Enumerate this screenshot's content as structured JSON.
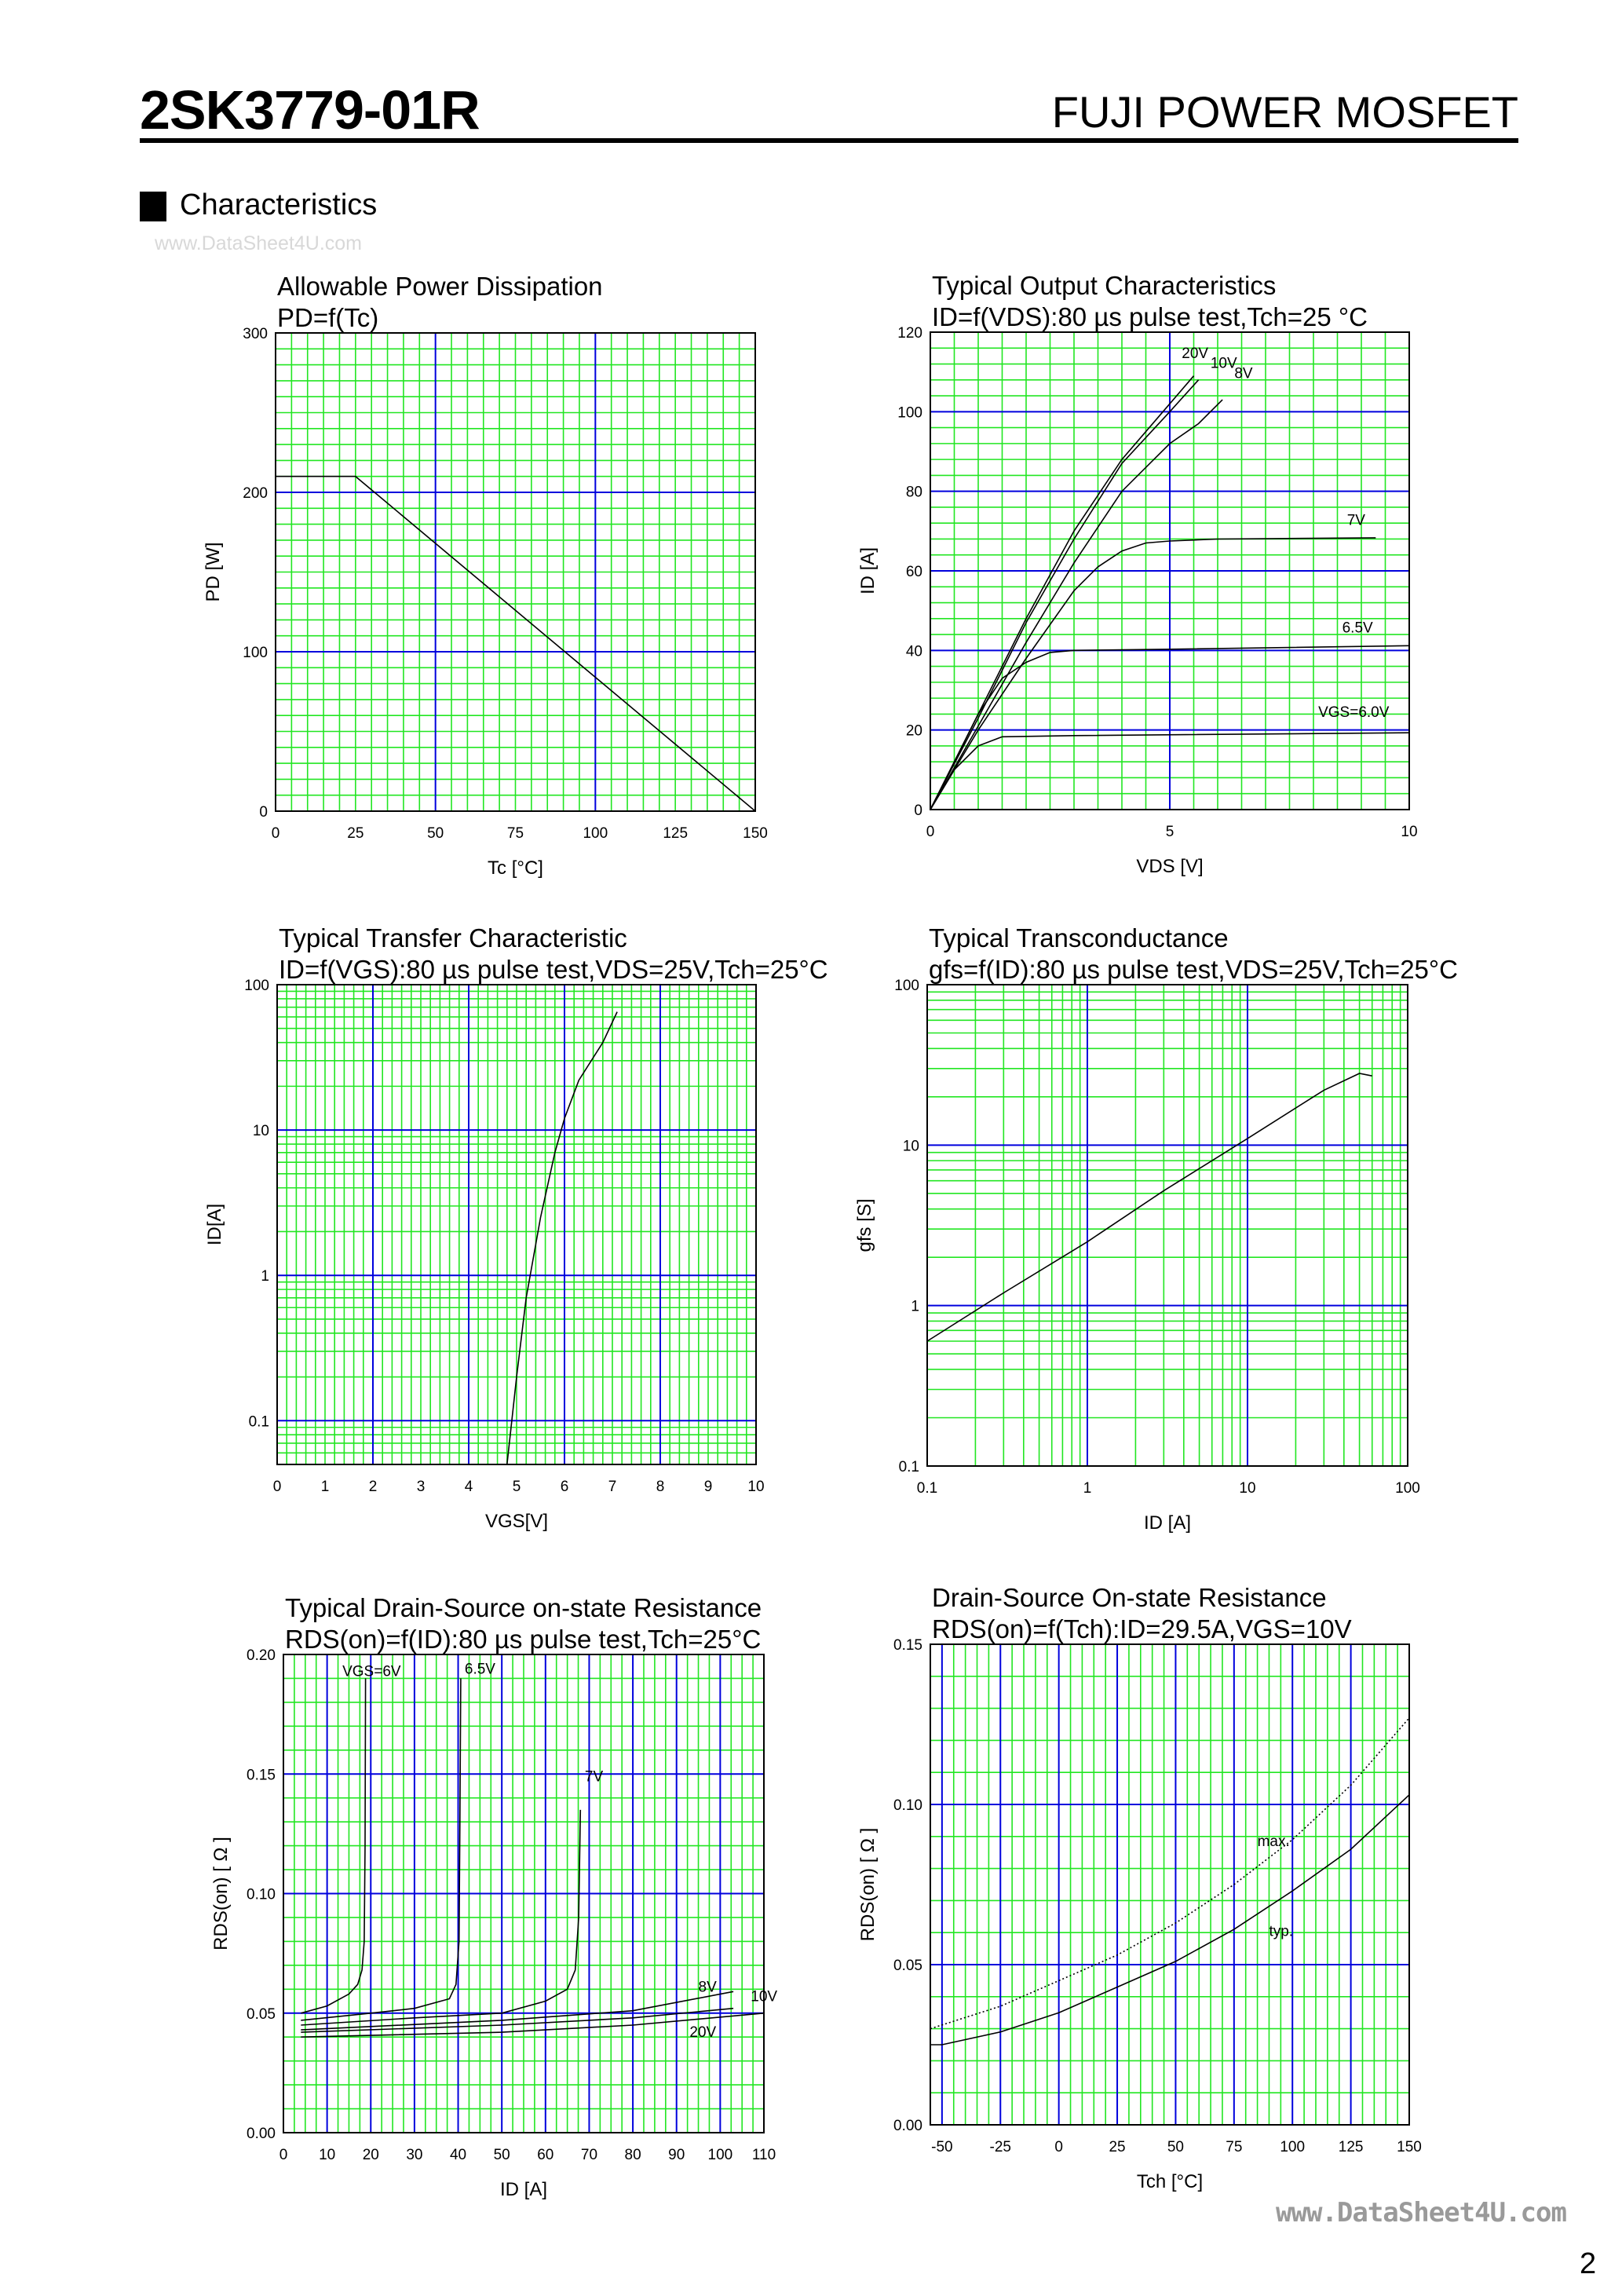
{
  "header": {
    "part_number": "2SK3779-01R",
    "product_line": "FUJI POWER MOSFET"
  },
  "section": {
    "title": "Characteristics"
  },
  "watermark_top": "www.DataSheet4U.com",
  "watermark_bottom": "www.DataSheet4U.com",
  "page_number": "2",
  "colors": {
    "minor_grid": "#22e622",
    "major_grid": "#0000dd",
    "curve": "#000000"
  },
  "chart_data": [
    {
      "type": "line",
      "title": "Allowable Power Dissipation",
      "subtitle": "PD=f(Tc)",
      "xlabel": "Tc [°C]",
      "ylabel": "PD [W]",
      "xscale": "linear",
      "yscale": "linear",
      "xlim": [
        0,
        150
      ],
      "ylim": [
        0,
        300
      ],
      "xticks": [
        "0",
        "25",
        "50",
        "75",
        "100",
        "125",
        "150"
      ],
      "yticks": [
        "0",
        "100",
        "200",
        "300"
      ],
      "grid": true,
      "series": [
        {
          "x": [
            0,
            25,
            150
          ],
          "y": [
            210,
            210,
            0
          ]
        }
      ]
    },
    {
      "type": "line",
      "title": "Typical Output Characteristics",
      "subtitle": "ID=f(VDS):80 µs pulse test,Tch=25 °C",
      "xlabel": "VDS [V]",
      "ylabel": "ID [A]",
      "xscale": "linear",
      "yscale": "linear",
      "xlim": [
        0,
        10
      ],
      "ylim": [
        0,
        120
      ],
      "xticks": [
        "0",
        "5",
        "10"
      ],
      "yticks": [
        "0",
        "20",
        "40",
        "60",
        "80",
        "100",
        "120"
      ],
      "grid": true,
      "series": [
        {
          "name": "20V",
          "x": [
            0,
            1,
            2,
            3,
            4,
            5,
            5.5
          ],
          "y": [
            0,
            24,
            48,
            70,
            88,
            102,
            109
          ]
        },
        {
          "name": "10V",
          "x": [
            0,
            1,
            2,
            3,
            4,
            5,
            5.6
          ],
          "y": [
            0,
            23,
            47,
            68,
            87,
            100,
            108
          ]
        },
        {
          "name": "8V",
          "x": [
            0,
            1,
            2,
            3,
            4,
            5,
            5.6,
            6.1
          ],
          "y": [
            0,
            21,
            42,
            62,
            80,
            92,
            97,
            103
          ]
        },
        {
          "name": "7V",
          "x": [
            0,
            1,
            2,
            3,
            3.5,
            4,
            4.5,
            5,
            6,
            9.3
          ],
          "y": [
            0,
            20,
            38,
            55,
            61,
            65,
            67,
            67.5,
            68,
            68.3
          ]
        },
        {
          "name": "6.5V",
          "x": [
            0,
            0.5,
            1,
            1.5,
            2,
            2.5,
            3,
            5,
            10
          ],
          "y": [
            0,
            12,
            24,
            33,
            37,
            39.5,
            40,
            40.3,
            41.2
          ]
        },
        {
          "name": "VGS=6.0V",
          "x": [
            0,
            0.5,
            1,
            1.5,
            3,
            10
          ],
          "y": [
            0,
            10,
            16,
            18.3,
            18.6,
            19.3
          ]
        }
      ]
    },
    {
      "type": "line",
      "title": "Typical Transfer Characteristic",
      "subtitle": "ID=f(VGS):80 µs pulse test,VDS=25V,Tch=25°C",
      "xlabel": "VGS[V]",
      "ylabel": "ID[A]",
      "xscale": "linear",
      "yscale": "log",
      "xlim": [
        0,
        10
      ],
      "ylim": [
        0.05,
        100
      ],
      "xticks": [
        "0",
        "1",
        "2",
        "3",
        "4",
        "5",
        "6",
        "7",
        "8",
        "9",
        "10"
      ],
      "yticks": [
        "0.1",
        "1",
        "10",
        "100"
      ],
      "grid": true,
      "series": [
        {
          "x": [
            4.8,
            5,
            5.2,
            5.5,
            5.8,
            6,
            6.3,
            6.8,
            7.1
          ],
          "y": [
            0.05,
            0.2,
            0.7,
            2.5,
            7,
            12,
            22,
            40,
            65
          ]
        }
      ]
    },
    {
      "type": "line",
      "title": "Typical Transconductance",
      "subtitle": "gfs=f(ID):80 µs pulse test,VDS=25V,Tch=25°C",
      "xlabel": "ID [A]",
      "ylabel": "gfs [S]",
      "xscale": "log",
      "yscale": "log",
      "xlim": [
        0.1,
        100
      ],
      "ylim": [
        0.1,
        100
      ],
      "xticks": [
        "0.1",
        "1",
        "10",
        "100"
      ],
      "yticks": [
        "0.1",
        "1",
        "10",
        "100"
      ],
      "grid": true,
      "series": [
        {
          "x": [
            0.1,
            0.3,
            1,
            3,
            10,
            30,
            50,
            60
          ],
          "y": [
            0.6,
            1.2,
            2.5,
            5.2,
            11,
            22,
            28,
            27
          ]
        }
      ]
    },
    {
      "type": "line",
      "title": "Typical Drain-Source on-state Resistance",
      "subtitle": "RDS(on)=f(ID):80  µs pulse test,Tch=25°C",
      "xlabel": "ID [A]",
      "ylabel": "RDS(on) [ Ω ]",
      "xscale": "linear",
      "yscale": "linear",
      "xlim": [
        0,
        110
      ],
      "ylim": [
        0,
        0.2
      ],
      "xticks": [
        "0",
        "10",
        "20",
        "30",
        "40",
        "50",
        "60",
        "70",
        "80",
        "90",
        "100",
        "110"
      ],
      "yticks": [
        "0.00",
        "0.05",
        "0.10",
        "0.15",
        "0.20"
      ],
      "grid": true,
      "series": [
        {
          "name": "VGS=6V",
          "x": [
            4,
            10,
            15,
            17,
            18,
            18.5,
            18.7,
            18.8
          ],
          "y": [
            0.05,
            0.053,
            0.058,
            0.062,
            0.068,
            0.08,
            0.12,
            0.19
          ]
        },
        {
          "name": "6.5V",
          "x": [
            4,
            20,
            30,
            38,
            39.5,
            40.2,
            40.4,
            40.6
          ],
          "y": [
            0.047,
            0.05,
            0.052,
            0.056,
            0.062,
            0.08,
            0.13,
            0.19
          ]
        },
        {
          "name": "7V",
          "x": [
            4,
            30,
            50,
            60,
            65,
            66.8,
            67.6,
            68
          ],
          "y": [
            0.045,
            0.048,
            0.05,
            0.055,
            0.06,
            0.068,
            0.09,
            0.135
          ]
        },
        {
          "name": "8V",
          "x": [
            4,
            50,
            80,
            103
          ],
          "y": [
            0.043,
            0.047,
            0.051,
            0.059
          ]
        },
        {
          "name": "10V",
          "x": [
            4,
            50,
            80,
            103
          ],
          "y": [
            0.042,
            0.045,
            0.048,
            0.052
          ]
        },
        {
          "name": "20V",
          "x": [
            4,
            50,
            80,
            110
          ],
          "y": [
            0.04,
            0.042,
            0.045,
            0.05
          ]
        }
      ]
    },
    {
      "type": "line",
      "title": "Drain-Source On-state Resistance",
      "subtitle": "RDS(on)=f(Tch):ID=29.5A,VGS=10V",
      "xlabel": "Tch [°C]",
      "ylabel": "RDS(on) [ Ω ]",
      "xscale": "linear",
      "yscale": "linear",
      "xlim": [
        -55,
        150
      ],
      "ylim": [
        0,
        0.15
      ],
      "xticks": [
        "-50",
        "-25",
        "0",
        "25",
        "50",
        "75",
        "100",
        "125",
        "150"
      ],
      "yticks": [
        "0.00",
        "0.05",
        "0.10",
        "0.15"
      ],
      "grid": true,
      "series": [
        {
          "name": "max.",
          "style": "dotted",
          "x": [
            -55,
            -25,
            0,
            25,
            50,
            75,
            100,
            125,
            150
          ],
          "y": [
            0.03,
            0.037,
            0.045,
            0.053,
            0.063,
            0.075,
            0.089,
            0.106,
            0.127
          ]
        },
        {
          "name": "typ.",
          "style": "solid",
          "x": [
            -55,
            -50,
            -25,
            0,
            25,
            50,
            75,
            100,
            125,
            150
          ],
          "y": [
            0.025,
            0.025,
            0.029,
            0.035,
            0.043,
            0.051,
            0.061,
            0.073,
            0.086,
            0.103
          ]
        }
      ]
    }
  ]
}
